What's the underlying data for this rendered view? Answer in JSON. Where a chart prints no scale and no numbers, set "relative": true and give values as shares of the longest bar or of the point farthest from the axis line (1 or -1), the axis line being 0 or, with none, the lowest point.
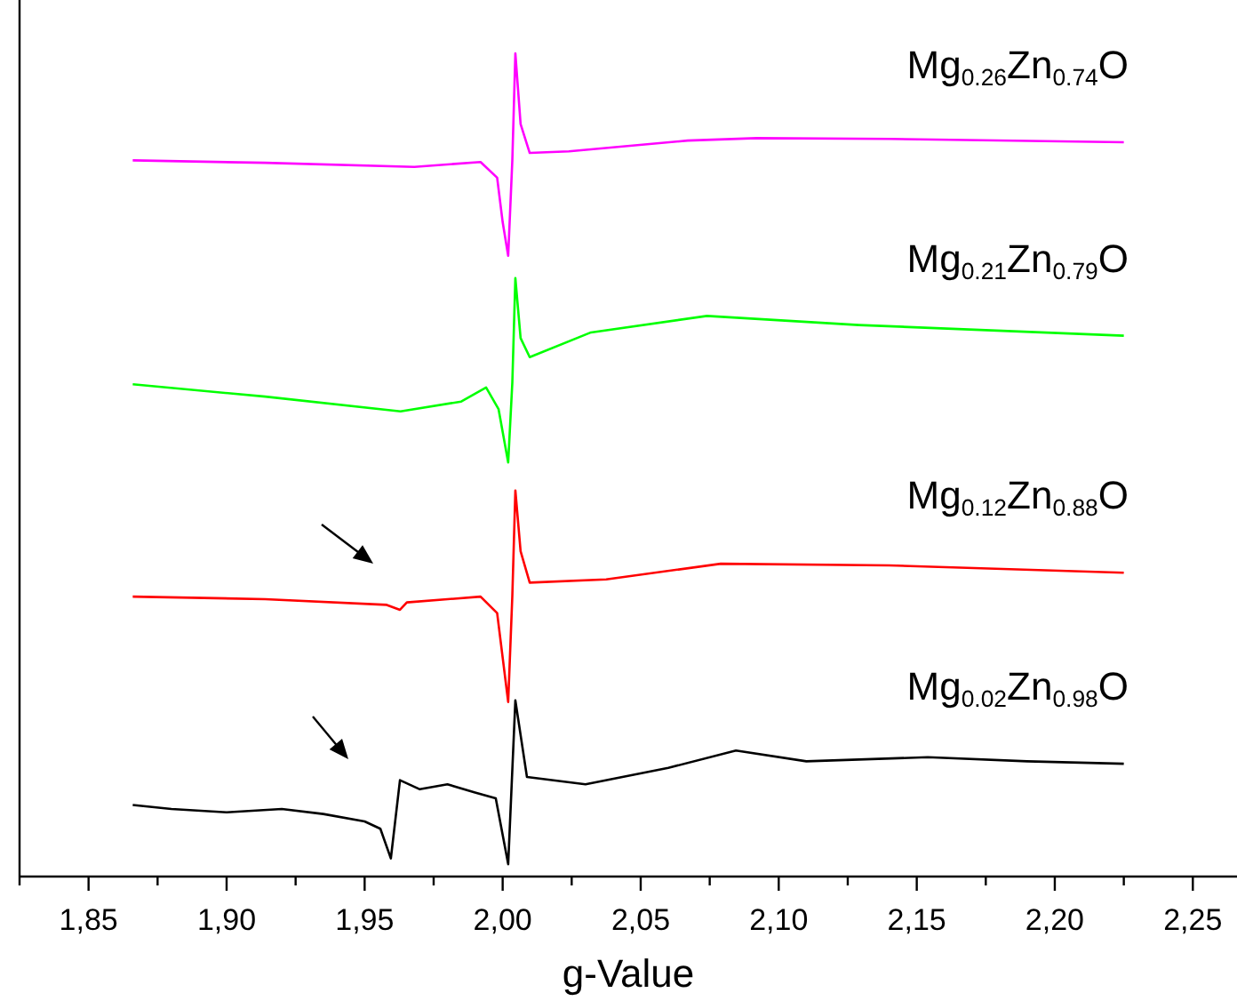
{
  "chart_data": {
    "type": "line",
    "relative": true,
    "xlabel": "g-Value",
    "xlim": [
      1.825,
      2.266
    ],
    "xticks": [
      {
        "value": 1.825,
        "label": null
      },
      {
        "value": 1.85,
        "label": "1,85"
      },
      {
        "value": 1.875,
        "label": null
      },
      {
        "value": 1.9,
        "label": "1,90"
      },
      {
        "value": 1.925,
        "label": null
      },
      {
        "value": 1.95,
        "label": "1,95"
      },
      {
        "value": 1.975,
        "label": null
      },
      {
        "value": 2.0,
        "label": "2,00"
      },
      {
        "value": 2.025,
        "label": null
      },
      {
        "value": 2.05,
        "label": "2,05"
      },
      {
        "value": 2.075,
        "label": null
      },
      {
        "value": 2.1,
        "label": "2,10"
      },
      {
        "value": 2.125,
        "label": null
      },
      {
        "value": 2.15,
        "label": "2,15"
      },
      {
        "value": 2.175,
        "label": null
      },
      {
        "value": 2.2,
        "label": "2,20"
      },
      {
        "value": 2.225,
        "label": null
      },
      {
        "value": 2.25,
        "label": "2,25"
      }
    ],
    "legend": false,
    "grid": false,
    "marker": "none",
    "line_style": "solid",
    "series": [
      {
        "name": "Mg$_{0.26}$Zn$_{0.74}$O",
        "color": "#ff00ff",
        "x": [
          1.866,
          1.914,
          1.968,
          1.992,
          1.998,
          2.0,
          2.002,
          2.0035,
          2.0046,
          2.0065,
          2.0098,
          2.024,
          2.067,
          2.092,
          2.14,
          2.225
        ],
        "values": [
          0.87,
          0.867,
          0.862,
          0.868,
          0.849,
          0.795,
          0.754,
          0.87,
          1.0,
          0.914,
          0.879,
          0.881,
          0.894,
          0.897,
          0.896,
          0.892
        ]
      },
      {
        "name": "Mg$_{0.21}$Zn$_{0.79}$O",
        "color": "#00ff00",
        "x": [
          1.866,
          1.914,
          1.963,
          1.985,
          1.994,
          1.9985,
          2.002,
          2.0035,
          2.0046,
          2.0065,
          2.0098,
          2.032,
          2.074,
          2.129,
          2.225
        ],
        "values": [
          0.598,
          0.583,
          0.565,
          0.577,
          0.594,
          0.568,
          0.503,
          0.6,
          0.727,
          0.654,
          0.631,
          0.661,
          0.681,
          0.67,
          0.657
        ]
      },
      {
        "name": "Mg$_{0.12}$Zn$_{0.88}$O",
        "color": "#ff0000",
        "x": [
          1.866,
          1.914,
          1.958,
          1.9628,
          1.9653,
          1.992,
          1.998,
          2.0,
          2.002,
          2.0035,
          2.0046,
          2.0065,
          2.0098,
          2.0375,
          2.079,
          2.14,
          2.225
        ],
        "values": [
          0.34,
          0.337,
          0.33,
          0.324,
          0.333,
          0.34,
          0.32,
          0.266,
          0.212,
          0.341,
          0.469,
          0.395,
          0.357,
          0.361,
          0.38,
          0.378,
          0.369
        ]
      },
      {
        "name": "Mg$_{0.02}$Zn$_{0.98}$O",
        "color": "#000000",
        "x": [
          1.866,
          1.88,
          1.9,
          1.92,
          1.935,
          1.95,
          1.9557,
          1.9595,
          1.9628,
          1.97,
          1.98,
          1.99,
          1.9975,
          2.002,
          2.0046,
          2.0088,
          2.03,
          2.06,
          2.0845,
          2.11,
          2.154,
          2.19,
          2.225
        ],
        "values": [
          0.087,
          0.082,
          0.078,
          0.082,
          0.076,
          0.067,
          0.058,
          0.022,
          0.117,
          0.106,
          0.112,
          0.102,
          0.095,
          0.015,
          0.214,
          0.121,
          0.112,
          0.132,
          0.153,
          0.14,
          0.145,
          0.14,
          0.137
        ]
      }
    ]
  }
}
